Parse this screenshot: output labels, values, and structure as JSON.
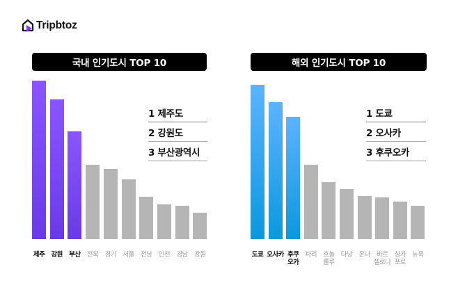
{
  "brand": {
    "name": "Tripbtoz",
    "logo_icon": "house-play-icon",
    "accent_color": "#7c3aed"
  },
  "chart_data": [
    {
      "type": "bar",
      "title": "국내 인기도시 TOP 10",
      "categories": [
        "제주",
        "강원",
        "부산",
        "전북",
        "경기",
        "서울",
        "전남",
        "인천",
        "경남",
        "강원"
      ],
      "values": [
        228,
        201,
        155,
        107,
        101,
        86,
        61,
        50,
        48,
        38
      ],
      "highlight_count": 3,
      "highlight_color": "#7b48f5",
      "base_color": "#b5b5b5",
      "xlabel": "",
      "ylabel": "",
      "grid": false,
      "legend": [
        "1 제주도",
        "2 강원도",
        "3 부산광역시"
      ],
      "legend_position": "upper-right"
    },
    {
      "type": "bar",
      "title": "해외 인기도시 TOP 10",
      "categories": [
        "도쿄",
        "오사카",
        "후쿠 오카",
        "파리",
        "호놀 룰루",
        "다낭",
        "온나",
        "바르 셀로나",
        "싱가 포르",
        "뉴욕"
      ],
      "values": [
        222,
        197,
        176,
        107,
        82,
        72,
        62,
        60,
        54,
        48
      ],
      "highlight_count": 3,
      "highlight_color": "#2aa6ee",
      "base_color": "#b5b5b5",
      "xlabel": "",
      "ylabel": "",
      "grid": false,
      "legend": [
        "1 도쿄",
        "2 오사카",
        "3 후쿠오카"
      ],
      "legend_position": "upper-right"
    }
  ],
  "domestic": {
    "title": "국내 인기도시 TOP 10",
    "legend": [
      "1 제주도",
      "2 강원도",
      "3 부산광역시"
    ],
    "labels": [
      [
        "제주"
      ],
      [
        "강원"
      ],
      [
        "부산"
      ],
      [
        "전북"
      ],
      [
        "경기"
      ],
      [
        "서울"
      ],
      [
        "전남"
      ],
      [
        "인천"
      ],
      [
        "경남"
      ],
      [
        "강원"
      ]
    ]
  },
  "overseas": {
    "title": "해외 인기도시 TOP 10",
    "legend": [
      "1 도쿄",
      "2 오사카",
      "3 후쿠오카"
    ],
    "labels": [
      [
        "도쿄"
      ],
      [
        "오사카"
      ],
      [
        "후쿠",
        "오카"
      ],
      [
        "파리"
      ],
      [
        "호놀",
        "룰루"
      ],
      [
        "다낭"
      ],
      [
        "온나"
      ],
      [
        "바르",
        "셀로나"
      ],
      [
        "싱가",
        "포르"
      ],
      [
        "뉴욕"
      ]
    ]
  }
}
